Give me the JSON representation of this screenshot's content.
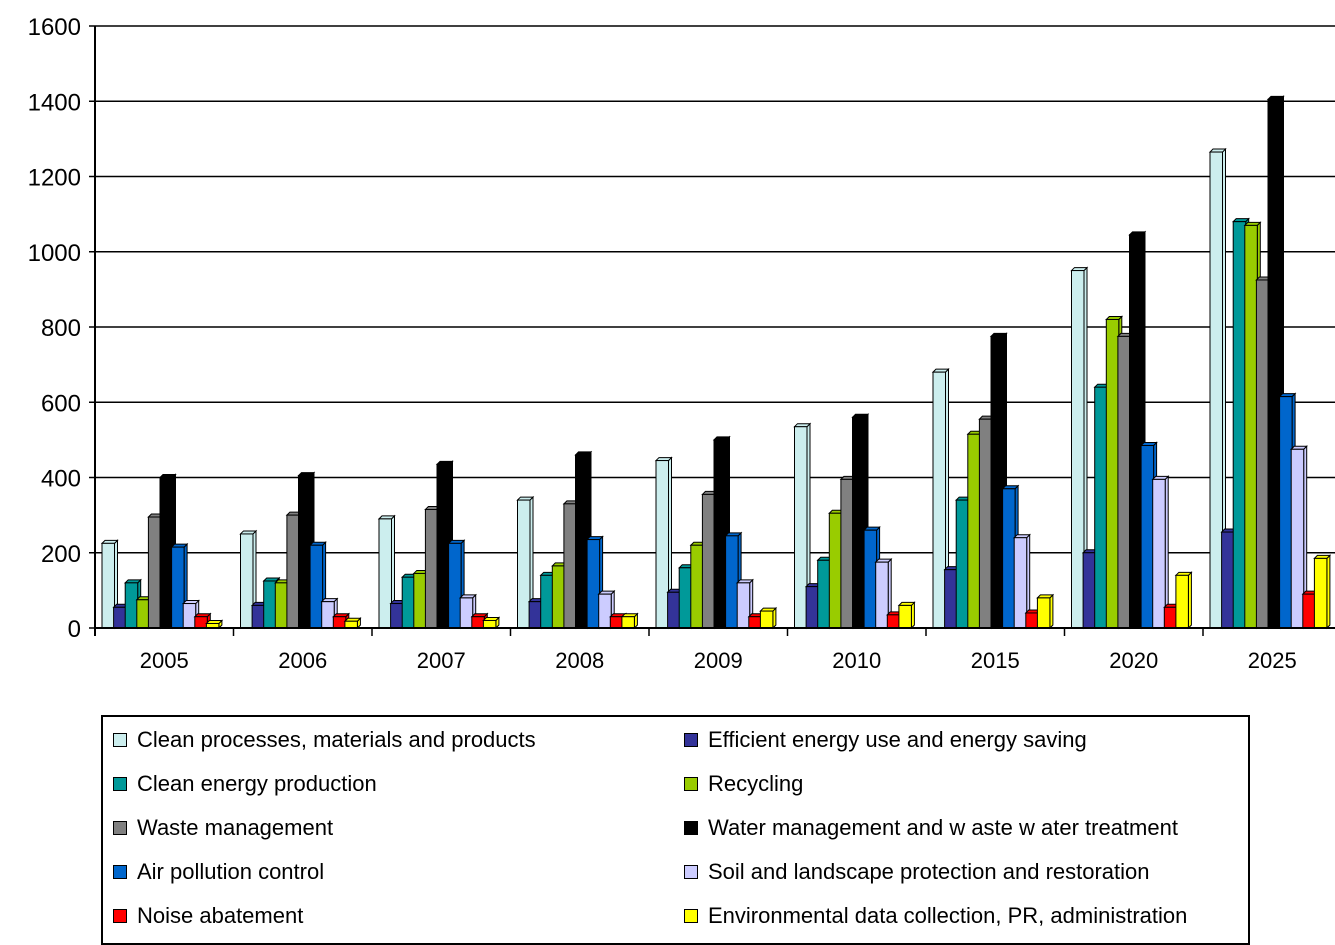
{
  "chart_data": {
    "type": "bar",
    "title": "",
    "xlabel": "",
    "ylabel": "",
    "ylim": [
      0,
      1600
    ],
    "yticks": [
      0,
      200,
      400,
      600,
      800,
      1000,
      1200,
      1400,
      1600
    ],
    "grid": true,
    "legend_position": "bottom",
    "categories": [
      "2005",
      "2006",
      "2007",
      "2008",
      "2009",
      "2010",
      "2015",
      "2020",
      "2025"
    ],
    "series": [
      {
        "name": "Clean processes, materials and products",
        "color": "#cceeee",
        "values": [
          225,
          250,
          290,
          340,
          445,
          535,
          680,
          950,
          1265
        ]
      },
      {
        "name": "Efficient energy use and energy saving",
        "color": "#333399",
        "values": [
          55,
          60,
          65,
          70,
          95,
          110,
          155,
          200,
          255
        ]
      },
      {
        "name": "Clean energy production",
        "color": "#009999",
        "values": [
          120,
          125,
          135,
          140,
          160,
          180,
          340,
          640,
          1080
        ]
      },
      {
        "name": "Recycling",
        "color": "#99cc00",
        "values": [
          75,
          120,
          145,
          165,
          220,
          305,
          515,
          820,
          1070
        ]
      },
      {
        "name": "Waste management",
        "color": "#808080",
        "values": [
          295,
          300,
          315,
          330,
          355,
          395,
          555,
          775,
          925
        ]
      },
      {
        "name": "Water management and w aste w ater treatment",
        "color": "#000000",
        "values": [
          400,
          405,
          435,
          460,
          500,
          560,
          775,
          1045,
          1405
        ]
      },
      {
        "name": "Air pollution control",
        "color": "#0066cc",
        "values": [
          215,
          220,
          225,
          235,
          245,
          260,
          370,
          485,
          615
        ]
      },
      {
        "name": "Soil and landscape protection and restoration",
        "color": "#ccccff",
        "values": [
          65,
          70,
          80,
          90,
          120,
          175,
          240,
          395,
          475
        ]
      },
      {
        "name": "Noise abatement",
        "color": "#ff0000",
        "values": [
          30,
          30,
          30,
          30,
          30,
          35,
          40,
          55,
          90
        ]
      },
      {
        "name": "Environmental data collection, PR, administration",
        "color": "#ffff00",
        "values": [
          12,
          18,
          20,
          30,
          45,
          60,
          80,
          140,
          185
        ]
      }
    ]
  }
}
